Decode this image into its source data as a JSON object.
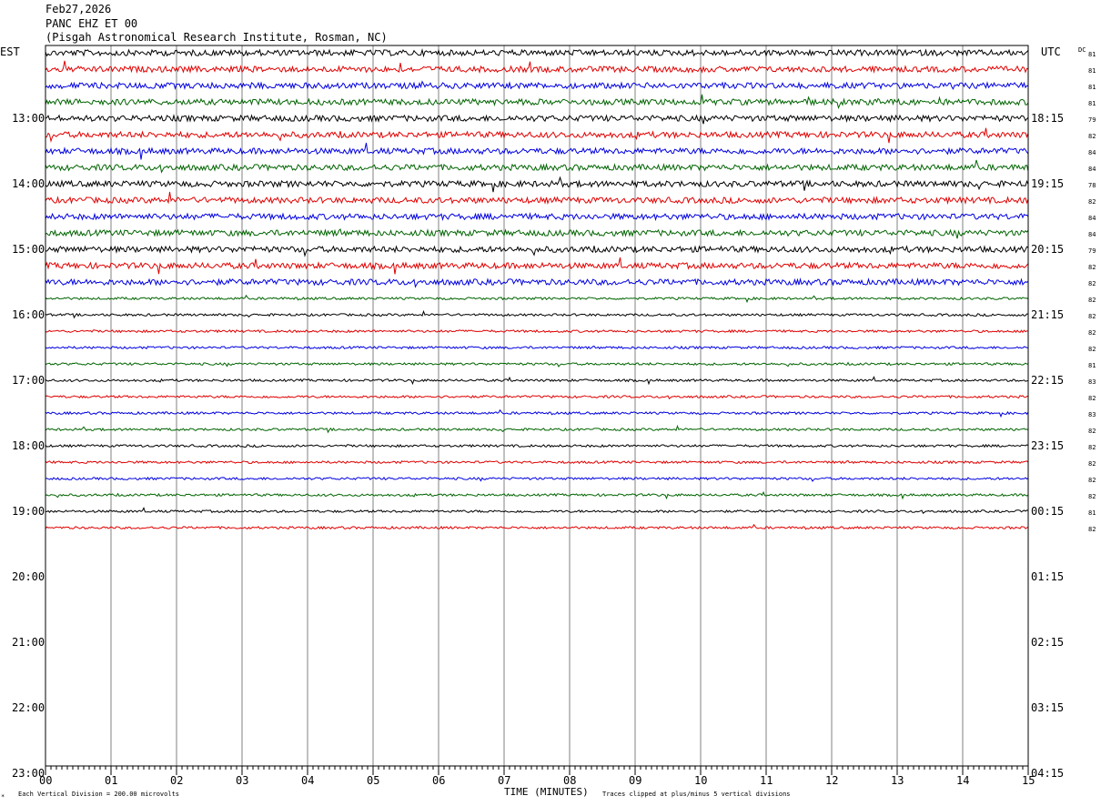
{
  "header": {
    "date": "Feb27,2026",
    "station": "PANC EHZ ET 00",
    "location": "(Pisgah Astronomical Research Institute, Rosman, NC)"
  },
  "axes": {
    "left_tz": "EST",
    "right_tz": "UTC",
    "dc_label": "DC",
    "x_title": "TIME (MINUTES)",
    "footer_left": "Each Vertical Division =  200.00 microvolts",
    "footer_right": "Traces clipped at plus/minus 5 vertical divisions"
  },
  "colors": {
    "trace_cycle": [
      "#000000",
      "#e00000",
      "#0000e0",
      "#006400"
    ],
    "grid": "#808080"
  },
  "chart_data": {
    "type": "line",
    "title": "PANC EHZ ET 00",
    "xlabel": "TIME (MINUTES)",
    "xlim": [
      0,
      15
    ],
    "x_ticks": [
      "00",
      "01",
      "02",
      "03",
      "04",
      "05",
      "06",
      "07",
      "08",
      "09",
      "10",
      "11",
      "12",
      "13",
      "14",
      "15"
    ],
    "rows_total": 44,
    "rows_recorded": 30,
    "left_hour_labels": [
      "13:00",
      "14:00",
      "15:00",
      "16:00",
      "17:00",
      "18:00",
      "19:00",
      "20:00",
      "21:00",
      "22:00",
      "23:00"
    ],
    "right_hour_labels": [
      "18:15",
      "19:15",
      "20:15",
      "21:15",
      "22:15",
      "23:15",
      "00:15",
      "01:15",
      "02:15",
      "03:15",
      "04:15"
    ],
    "hour_label_first_row": 4,
    "hour_label_every_rows": 4,
    "dc_offsets": [
      "81",
      "81",
      "81",
      "81",
      "79",
      "82",
      "84",
      "84",
      "78",
      "82",
      "84",
      "84",
      "79",
      "82",
      "82",
      "82",
      "82",
      "82",
      "82",
      "81",
      "83",
      "82",
      "83",
      "82",
      "82",
      "82",
      "82",
      "82",
      "81",
      "82"
    ],
    "grid": true
  }
}
